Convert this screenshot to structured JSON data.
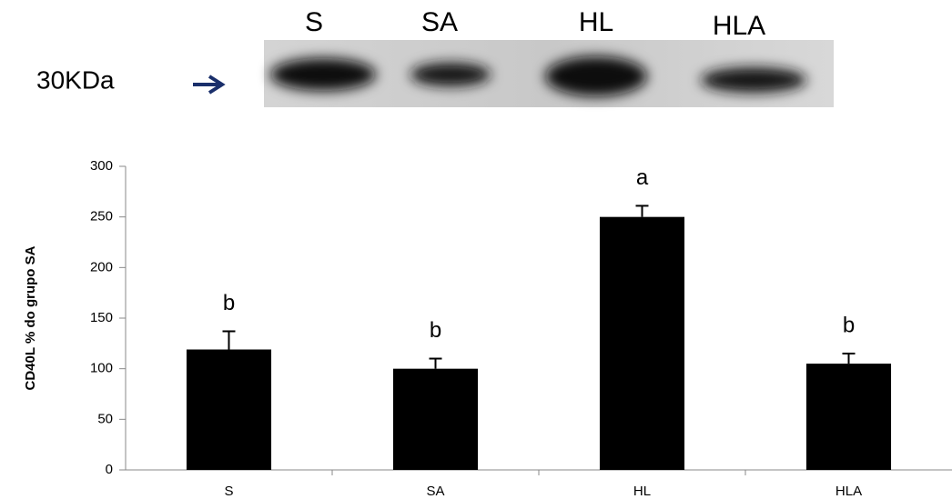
{
  "blot": {
    "lanes": [
      "S",
      "SA",
      "HL",
      "HLA"
    ],
    "marker": "30KDa"
  },
  "chart_data": {
    "type": "bar",
    "y_label": "CD40L % do grupo SA",
    "categories": [
      "S",
      "SA",
      "HL",
      "HLA"
    ],
    "values": [
      119,
      100,
      250,
      105
    ],
    "errors": [
      18,
      10,
      11,
      10
    ],
    "annotations": [
      "b",
      "b",
      "a",
      "b"
    ],
    "color": "#000000",
    "ylim": [
      0,
      300
    ],
    "yticks": [
      0,
      50,
      100,
      150,
      200,
      250,
      300
    ]
  }
}
